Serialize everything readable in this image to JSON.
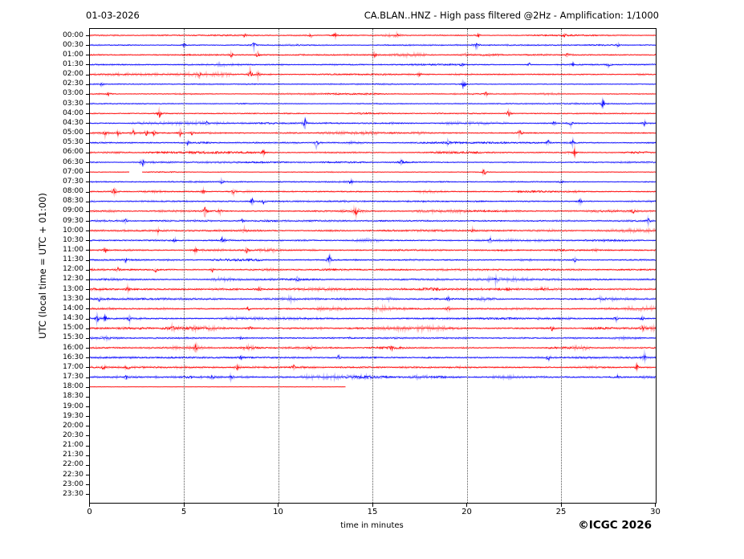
{
  "header": {
    "date": "01-03-2026",
    "title": "CA.BLAN..HNZ - High pass filtered @2Hz - Amplification: 1/1000"
  },
  "footer": {
    "copyright": "©ICGC 2026"
  },
  "axes": {
    "ylabel": "UTC (local time = UTC + 01:00)",
    "xlabel": "time in minutes",
    "x_ticks": [
      0,
      5,
      10,
      15,
      20,
      25,
      30
    ],
    "x_range": [
      0,
      30
    ],
    "grid_minutes": [
      5,
      10,
      15,
      20,
      25
    ]
  },
  "chart_data": {
    "type": "line",
    "subtype": "helicorder-seismogram",
    "station": "CA.BLAN..HNZ",
    "date": "01-03-2026",
    "xlim": [
      0,
      30
    ],
    "x_unit": "minutes",
    "row_interval_minutes": 30,
    "colors": {
      "even_rows": "#ff0000",
      "odd_rows": "#0000ff"
    },
    "last_data_row": "18:00",
    "last_data_minute": 13.5,
    "rows": [
      {
        "label": "00:00",
        "color": "#ff0000",
        "amp": 0.45,
        "coverage": 1,
        "spikes": [
          [
            8.2,
            1.5
          ],
          [
            11.7,
            2.2
          ],
          [
            13.0,
            1.8
          ],
          [
            16.3,
            2.0
          ],
          [
            20.6,
            1.5
          ],
          [
            25.2,
            1.5
          ]
        ]
      },
      {
        "label": "00:30",
        "color": "#0000ff",
        "amp": 0.45,
        "coverage": 1,
        "spikes": [
          [
            5.0,
            1.5
          ],
          [
            8.7,
            2.5
          ],
          [
            20.5,
            2.5
          ],
          [
            28.0,
            1.5
          ]
        ]
      },
      {
        "label": "01:00",
        "color": "#ff0000",
        "amp": 0.5,
        "coverage": 1,
        "spikes": [
          [
            7.5,
            1.8
          ],
          [
            8.9,
            2.5
          ],
          [
            15.1,
            2.2
          ],
          [
            25.3,
            1.5
          ]
        ]
      },
      {
        "label": "01:30",
        "color": "#0000ff",
        "amp": 0.5,
        "coverage": 1,
        "spikes": [
          [
            19.7,
            1.8
          ],
          [
            23.3,
            1.8
          ],
          [
            25.6,
            1.5
          ],
          [
            27.5,
            1.5
          ]
        ]
      },
      {
        "label": "02:00",
        "color": "#ff0000",
        "amp": 0.5,
        "coverage": 1,
        "spikes": [
          [
            5.8,
            1.8
          ],
          [
            8.5,
            5.5
          ],
          [
            8.9,
            3.0
          ],
          [
            17.5,
            1.5
          ]
        ]
      },
      {
        "label": "02:30",
        "color": "#0000ff",
        "amp": 0.45,
        "coverage": 1,
        "spikes": [
          [
            0.6,
            1.8
          ],
          [
            19.8,
            4.5
          ]
        ]
      },
      {
        "label": "03:00",
        "color": "#ff0000",
        "amp": 0.4,
        "coverage": 1,
        "spikes": [
          [
            1.0,
            1.5
          ],
          [
            21.0,
            1.2
          ]
        ]
      },
      {
        "label": "03:30",
        "color": "#0000ff",
        "amp": 0.4,
        "coverage": 1,
        "spikes": [
          [
            27.2,
            3.5
          ]
        ]
      },
      {
        "label": "04:00",
        "color": "#ff0000",
        "amp": 0.45,
        "coverage": 1,
        "spikes": [
          [
            3.7,
            3.5
          ],
          [
            22.2,
            2.5
          ]
        ]
      },
      {
        "label": "04:30",
        "color": "#0000ff",
        "amp": 0.5,
        "coverage": 1,
        "spikes": [
          [
            6.2,
            2.0
          ],
          [
            11.4,
            4.0
          ],
          [
            24.6,
            2.0
          ],
          [
            25.5,
            2.0
          ],
          [
            29.4,
            2.0
          ]
        ]
      },
      {
        "label": "05:00",
        "color": "#ff0000",
        "amp": 0.55,
        "coverage": 1,
        "spikes": [
          [
            0.8,
            2.2
          ],
          [
            1.5,
            2.0
          ],
          [
            2.3,
            2.5
          ],
          [
            3.0,
            2.2
          ],
          [
            3.4,
            2.0
          ],
          [
            4.8,
            2.5
          ],
          [
            5.4,
            1.8
          ],
          [
            22.8,
            3.5
          ]
        ]
      },
      {
        "label": "05:30",
        "color": "#0000ff",
        "amp": 0.55,
        "coverage": 1,
        "spikes": [
          [
            5.2,
            2.0
          ],
          [
            12.0,
            4.5
          ],
          [
            19.0,
            2.5
          ],
          [
            24.3,
            2.0
          ],
          [
            25.6,
            2.5
          ]
        ]
      },
      {
        "label": "06:00",
        "color": "#ff0000",
        "amp": 0.5,
        "coverage": 1,
        "spikes": [
          [
            9.2,
            2.2
          ],
          [
            25.7,
            3.0
          ]
        ]
      },
      {
        "label": "06:30",
        "color": "#0000ff",
        "amp": 0.45,
        "coverage": 1,
        "spikes": [
          [
            2.8,
            2.8
          ],
          [
            16.5,
            1.8
          ]
        ]
      },
      {
        "label": "07:00",
        "color": "#ff0000",
        "amp": 0.25,
        "coverage": 1,
        "gaps": [
          [
            2.1,
            2.75
          ]
        ],
        "spikes": [
          [
            20.9,
            3.5
          ]
        ]
      },
      {
        "label": "07:30",
        "color": "#0000ff",
        "amp": 0.45,
        "coverage": 1,
        "spikes": [
          [
            7.0,
            2.2
          ],
          [
            13.8,
            1.8
          ],
          [
            25.0,
            1.3
          ]
        ]
      },
      {
        "label": "08:00",
        "color": "#ff0000",
        "amp": 0.5,
        "coverage": 1,
        "spikes": [
          [
            1.3,
            3.5
          ],
          [
            6.0,
            1.8
          ],
          [
            7.6,
            1.8
          ]
        ]
      },
      {
        "label": "08:30",
        "color": "#0000ff",
        "amp": 0.55,
        "coverage": 1,
        "spikes": [
          [
            8.6,
            2.2
          ],
          [
            9.2,
            2.0
          ],
          [
            26.0,
            1.8
          ]
        ]
      },
      {
        "label": "09:00",
        "color": "#ff0000",
        "amp": 0.6,
        "coverage": 1,
        "spikes": [
          [
            6.1,
            4.5
          ],
          [
            6.9,
            2.0
          ],
          [
            14.1,
            4.5
          ],
          [
            28.8,
            2.5
          ]
        ]
      },
      {
        "label": "09:30",
        "color": "#0000ff",
        "amp": 0.65,
        "coverage": 1,
        "spikes": [
          [
            1.9,
            1.8
          ],
          [
            8.1,
            1.8
          ],
          [
            29.6,
            3.0
          ]
        ]
      },
      {
        "label": "10:00",
        "color": "#ff0000",
        "amp": 0.65,
        "coverage": 1,
        "spikes": [
          [
            3.6,
            1.8
          ],
          [
            8.2,
            2.0
          ],
          [
            20.3,
            1.8
          ]
        ]
      },
      {
        "label": "10:30",
        "color": "#0000ff",
        "amp": 0.6,
        "coverage": 1,
        "spikes": [
          [
            4.5,
            1.8
          ],
          [
            7.0,
            1.8
          ],
          [
            21.2,
            2.5
          ]
        ]
      },
      {
        "label": "11:00",
        "color": "#ff0000",
        "amp": 0.6,
        "coverage": 1,
        "spikes": [
          [
            0.8,
            2.2
          ],
          [
            5.6,
            1.8
          ],
          [
            8.3,
            2.2
          ]
        ]
      },
      {
        "label": "11:30",
        "color": "#0000ff",
        "amp": 0.6,
        "coverage": 1,
        "spikes": [
          [
            1.9,
            1.8
          ],
          [
            12.7,
            4.5
          ],
          [
            25.7,
            2.0
          ]
        ]
      },
      {
        "label": "12:00",
        "color": "#ff0000",
        "amp": 0.7,
        "coverage": 1,
        "spikes": [
          [
            1.5,
            2.0
          ],
          [
            3.5,
            2.0
          ],
          [
            6.5,
            1.8
          ]
        ]
      },
      {
        "label": "12:30",
        "color": "#0000ff",
        "amp": 0.7,
        "coverage": 1,
        "spikes": [
          [
            11.0,
            1.8
          ],
          [
            21.5,
            1.8
          ]
        ]
      },
      {
        "label": "13:00",
        "color": "#ff0000",
        "amp": 0.85,
        "coverage": 1,
        "spikes": [
          [
            2.0,
            1.8
          ],
          [
            9.0,
            1.8
          ],
          [
            24.0,
            1.8
          ]
        ]
      },
      {
        "label": "13:30",
        "color": "#0000ff",
        "amp": 0.75,
        "coverage": 1,
        "spikes": [
          [
            0.5,
            1.8
          ],
          [
            19.0,
            1.5
          ]
        ]
      },
      {
        "label": "14:00",
        "color": "#ff0000",
        "amp": 0.7,
        "coverage": 1,
        "spikes": [
          [
            8.4,
            1.8
          ],
          [
            19.0,
            1.8
          ]
        ]
      },
      {
        "label": "14:30",
        "color": "#0000ff",
        "amp": 0.7,
        "coverage": 1,
        "spikes": [
          [
            0.4,
            3.0
          ],
          [
            0.8,
            2.5
          ],
          [
            2.1,
            2.0
          ],
          [
            27.9,
            2.0
          ],
          [
            29.3,
            2.0
          ]
        ]
      },
      {
        "label": "15:00",
        "color": "#ff0000",
        "amp": 0.7,
        "coverage": 1,
        "spikes": [
          [
            4.4,
            2.2
          ],
          [
            8.5,
            2.0
          ],
          [
            24.5,
            2.2
          ],
          [
            29.3,
            2.2
          ]
        ]
      },
      {
        "label": "15:30",
        "color": "#0000ff",
        "amp": 0.6,
        "coverage": 1,
        "spikes": [
          [
            8.0,
            1.5
          ]
        ]
      },
      {
        "label": "16:00",
        "color": "#ff0000",
        "amp": 0.6,
        "coverage": 1,
        "spikes": [
          [
            5.6,
            2.5
          ],
          [
            11.7,
            2.0
          ],
          [
            16.0,
            1.5
          ]
        ]
      },
      {
        "label": "16:30",
        "color": "#0000ff",
        "amp": 0.7,
        "coverage": 1,
        "spikes": [
          [
            8.0,
            2.0
          ],
          [
            13.2,
            2.2
          ],
          [
            24.3,
            2.8
          ],
          [
            29.4,
            2.2
          ]
        ]
      },
      {
        "label": "17:00",
        "color": "#ff0000",
        "amp": 0.7,
        "coverage": 1,
        "spikes": [
          [
            0.7,
            2.0
          ],
          [
            2.0,
            2.2
          ],
          [
            7.8,
            2.0
          ],
          [
            10.8,
            2.0
          ],
          [
            29.0,
            3.0
          ]
        ]
      },
      {
        "label": "17:30",
        "color": "#0000ff",
        "amp": 0.7,
        "coverage": 1,
        "spikes": [
          [
            1.9,
            2.2
          ],
          [
            6.5,
            2.0
          ],
          [
            7.5,
            2.0
          ],
          [
            28.0,
            1.8
          ]
        ]
      },
      {
        "label": "18:00",
        "color": "#ff0000",
        "amp": 0.15,
        "coverage": 0.452,
        "spikes": []
      },
      {
        "label": "18:30",
        "color": "#0000ff",
        "amp": 0,
        "coverage": 0,
        "spikes": []
      },
      {
        "label": "19:00",
        "color": "#ff0000",
        "amp": 0,
        "coverage": 0,
        "spikes": []
      },
      {
        "label": "19:30",
        "color": "#0000ff",
        "amp": 0,
        "coverage": 0,
        "spikes": []
      },
      {
        "label": "20:00",
        "color": "#ff0000",
        "amp": 0,
        "coverage": 0,
        "spikes": []
      },
      {
        "label": "20:30",
        "color": "#0000ff",
        "amp": 0,
        "coverage": 0,
        "spikes": []
      },
      {
        "label": "21:00",
        "color": "#ff0000",
        "amp": 0,
        "coverage": 0,
        "spikes": []
      },
      {
        "label": "21:30",
        "color": "#0000ff",
        "amp": 0,
        "coverage": 0,
        "spikes": []
      },
      {
        "label": "22:00",
        "color": "#ff0000",
        "amp": 0,
        "coverage": 0,
        "spikes": []
      },
      {
        "label": "22:30",
        "color": "#0000ff",
        "amp": 0,
        "coverage": 0,
        "spikes": []
      },
      {
        "label": "23:00",
        "color": "#ff0000",
        "amp": 0,
        "coverage": 0,
        "spikes": []
      },
      {
        "label": "23:30",
        "color": "#0000ff",
        "amp": 0,
        "coverage": 0,
        "spikes": []
      }
    ]
  }
}
